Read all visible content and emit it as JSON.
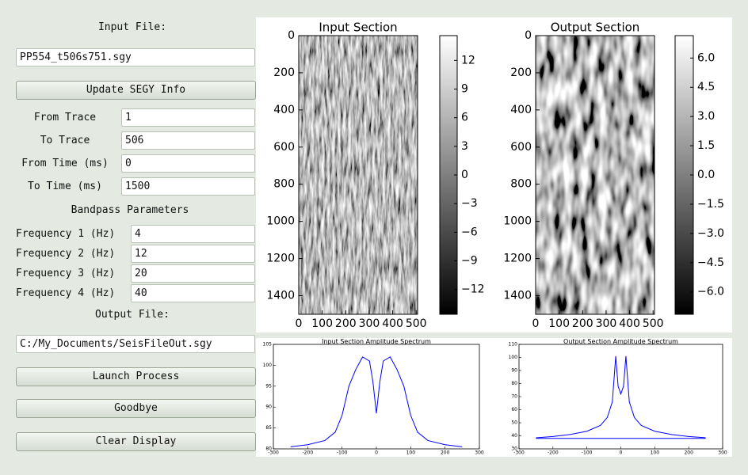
{
  "form": {
    "input_file_label": "Input File:",
    "input_file": "PP554_t506s751.sgy",
    "update_button": "Update SEGY Info",
    "fields": [
      {
        "label": "From Trace",
        "value": "1"
      },
      {
        "label": "To Trace",
        "value": "506"
      },
      {
        "label": "From Time (ms)",
        "value": "0"
      },
      {
        "label": "To Time (ms)",
        "value": "1500"
      }
    ],
    "bandpass_title": "Bandpass Parameters",
    "frequencies": [
      {
        "label": "Frequency 1 (Hz)",
        "value": "4"
      },
      {
        "label": "Frequency 2 (Hz)",
        "value": "12"
      },
      {
        "label": "Frequency 3 (Hz)",
        "value": "20"
      },
      {
        "label": "Frequency 4 (Hz)",
        "value": "40"
      }
    ],
    "output_file_label": "Output File:",
    "output_file": "C:/My_Documents/SeisFileOut.sgy",
    "buttons": [
      "Launch Process",
      "Goodbye",
      "Clear Display"
    ]
  },
  "sections": [
    {
      "title": "Input Section",
      "xlim": [
        0,
        506
      ],
      "ylim": [
        0,
        1500
      ],
      "xticks": [
        0,
        100,
        200,
        300,
        400,
        500
      ],
      "yticks": [
        0,
        200,
        400,
        600,
        800,
        1000,
        1200,
        1400
      ],
      "clim": [
        -14.6,
        14.6
      ],
      "colorbar_ticks": [
        12,
        9,
        6,
        3,
        0,
        {
          "value": -3,
          "label": "−3"
        },
        {
          "value": -6,
          "label": "−6"
        },
        {
          "value": -9,
          "label": "−9"
        },
        {
          "value": -12,
          "label": "−12"
        }
      ]
    },
    {
      "title": "Output Section",
      "xlim": [
        0,
        506
      ],
      "ylim": [
        0,
        1500
      ],
      "xticks": [
        0,
        100,
        200,
        300,
        400,
        500
      ],
      "yticks": [
        0,
        200,
        400,
        600,
        800,
        1000,
        1200,
        1400
      ],
      "clim": [
        -7.15,
        7.15
      ],
      "colorbar_ticks": [
        {
          "value": 6,
          "label": "6.0"
        },
        {
          "value": 4.5,
          "label": "4.5"
        },
        {
          "value": 3,
          "label": "3.0"
        },
        {
          "value": 1.5,
          "label": "1.5"
        },
        {
          "value": 0,
          "label": "0.0"
        },
        {
          "value": -1.5,
          "label": "−1.5"
        },
        {
          "value": -3,
          "label": "−3.0"
        },
        {
          "value": -4.5,
          "label": "−4.5"
        },
        {
          "value": -6,
          "label": "−6.0"
        }
      ]
    }
  ],
  "spectra": [
    {
      "type": "line",
      "title": "Input Section Amplitude Spectrum",
      "xlim": [
        -300,
        300
      ],
      "ylim": [
        80,
        105
      ],
      "xticks": [
        -300,
        -200,
        -100,
        0,
        100,
        200,
        300
      ],
      "yticks": [
        80,
        85,
        90,
        95,
        100,
        105
      ],
      "series": [
        {
          "color": "#0000ff",
          "x": [
            -250,
            -200,
            -150,
            -120,
            -100,
            -80,
            -60,
            -40,
            -20,
            -10,
            0,
            10,
            20,
            40,
            60,
            80,
            100,
            120,
            150,
            200,
            250
          ],
          "values": [
            80.5,
            81,
            82,
            84,
            88,
            95,
            99,
            102,
            101,
            96,
            88.5,
            96,
            101,
            102,
            99,
            95,
            88,
            84,
            82,
            81,
            80.5
          ]
        }
      ]
    },
    {
      "type": "line",
      "title": "Output Section Amplitude Spectrum",
      "xlim": [
        -300,
        300
      ],
      "ylim": [
        30,
        110
      ],
      "xticks": [
        -300,
        -200,
        -100,
        0,
        100,
        200,
        300
      ],
      "yticks": [
        30,
        40,
        50,
        60,
        70,
        80,
        90,
        100,
        110
      ],
      "series": [
        {
          "color": "#0000ff",
          "x": [
            -250,
            -200,
            -150,
            -100,
            -60,
            -40,
            -25,
            -15,
            -8,
            0,
            8,
            15,
            25,
            40,
            60,
            100,
            150,
            200,
            250
          ],
          "values": [
            38.5,
            39.5,
            41,
            43.5,
            48,
            54,
            66,
            101,
            78,
            72,
            78,
            101,
            66,
            54,
            48,
            43.5,
            41,
            39.5,
            38.5
          ]
        },
        {
          "color": "#0000ff",
          "x": [
            -250,
            250
          ],
          "values": [
            38,
            38
          ]
        }
      ]
    }
  ]
}
